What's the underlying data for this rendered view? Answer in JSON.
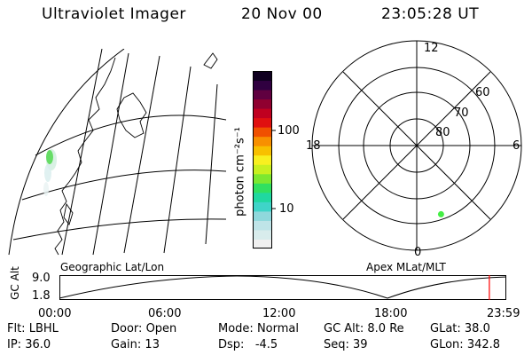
{
  "header": {
    "instrument": "Ultraviolet Imager",
    "date": "20 Nov 00",
    "time": "23:05:28 UT"
  },
  "colorbar": {
    "unit_label": "photon cm⁻²s⁻¹",
    "ticks": [
      "100",
      "10"
    ],
    "colors": [
      "#f0f0f0",
      "#d8ecec",
      "#bfe4e8",
      "#8fd8dc",
      "#3fd4c8",
      "#20d8a0",
      "#30e060",
      "#7ce830",
      "#c8f020",
      "#f8f020",
      "#f8c000",
      "#f89000",
      "#f05000",
      "#e01010",
      "#c00020",
      "#900030",
      "#600040",
      "#300040",
      "#100020"
    ]
  },
  "geo_panel": {
    "label": "Geographic Lat/Lon"
  },
  "polar_plot": {
    "label": "Apex MLat/MLT",
    "mlt_labels": {
      "top": "12",
      "left": "18",
      "right": "6",
      "bottom": "0"
    },
    "lat_labels": [
      "60",
      "70",
      "80"
    ],
    "point": {
      "mlat": 62,
      "mlt": 1.3,
      "color": "#44ee44"
    }
  },
  "altitude_plot": {
    "axis_label": "GC Alt",
    "y_ticks": [
      "9.0",
      "1.8"
    ],
    "x_ticks": [
      "00:00",
      "06:00",
      "12:00",
      "18:00",
      "23:59"
    ],
    "current_time_hours": 23.09,
    "marker_color": "#ff0000"
  },
  "footer": {
    "row1": [
      {
        "key": "Flt:",
        "value": "LBHL"
      },
      {
        "key": "Door:",
        "value": "Open"
      },
      {
        "key": "Mode:",
        "value": "Normal"
      },
      {
        "key": "GC Alt:",
        "value": "8.0 Re"
      },
      {
        "key": "GLat:",
        "value": "38.0"
      }
    ],
    "row2": [
      {
        "key": "IP:",
        "value": "36.0"
      },
      {
        "key": "Gain:",
        "value": "13"
      },
      {
        "key": "Dsp:",
        "value": "  -4.5"
      },
      {
        "key": "Seq:",
        "value": "39"
      },
      {
        "key": "GLon:",
        "value": "342.8"
      }
    ]
  }
}
